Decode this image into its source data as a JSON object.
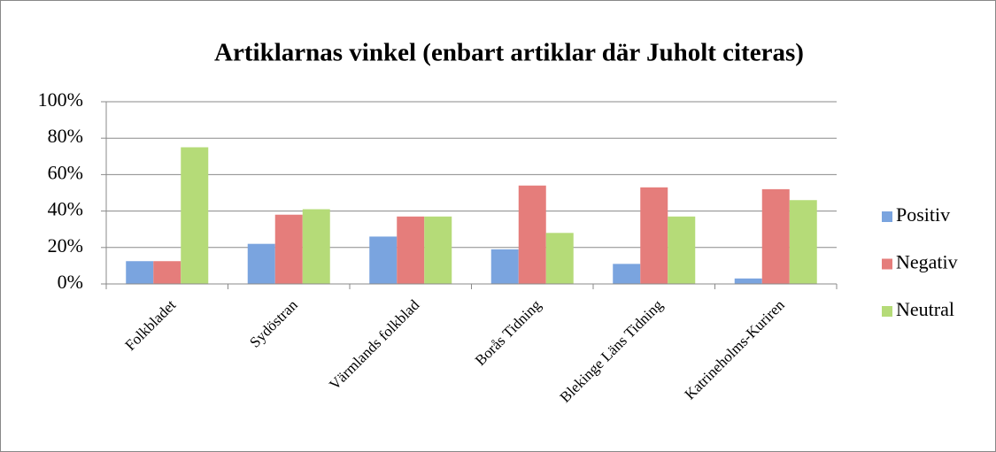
{
  "chart_data": {
    "type": "bar",
    "title": "Artiklarnas vinkel  (enbart artiklar där Juholt citeras)",
    "categories": [
      "Folkbladet",
      "Sydöstran",
      "Värmlands folkblad",
      "Borås Tidning",
      "Blekinge Läns Tidning",
      "Katrineholms-Kuriren"
    ],
    "series": [
      {
        "name": "Positiv",
        "color": "#7aa4df",
        "values": [
          12.5,
          22,
          26,
          19,
          11,
          3
        ]
      },
      {
        "name": "Negativ",
        "color": "#e57d7b",
        "values": [
          12.5,
          38,
          37,
          54,
          53,
          52
        ]
      },
      {
        "name": "Neutral",
        "color": "#b5db78",
        "values": [
          75,
          41,
          37,
          28,
          37,
          46
        ]
      }
    ],
    "ylim": [
      0,
      100
    ],
    "yticks": [
      {
        "value": 0,
        "label": "0%"
      },
      {
        "value": 20,
        "label": "20%"
      },
      {
        "value": 40,
        "label": "40%"
      },
      {
        "value": 60,
        "label": "60%"
      },
      {
        "value": 80,
        "label": "80%"
      },
      {
        "value": 100,
        "label": "100%"
      }
    ],
    "grid": true,
    "legend": "right"
  }
}
